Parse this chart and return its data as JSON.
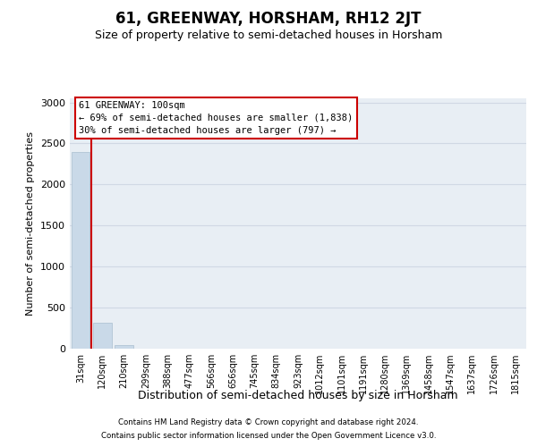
{
  "title": "61, GREENWAY, HORSHAM, RH12 2JT",
  "subtitle": "Size of property relative to semi-detached houses in Horsham",
  "xlabel": "Distribution of semi-detached houses by size in Horsham",
  "ylabel": "Number of semi-detached properties",
  "categories": [
    "31sqm",
    "120sqm",
    "210sqm",
    "299sqm",
    "388sqm",
    "477sqm",
    "566sqm",
    "656sqm",
    "745sqm",
    "834sqm",
    "923sqm",
    "1012sqm",
    "1101sqm",
    "1191sqm",
    "1280sqm",
    "1369sqm",
    "1458sqm",
    "1547sqm",
    "1637sqm",
    "1726sqm",
    "1815sqm"
  ],
  "values": [
    2400,
    320,
    48,
    0,
    0,
    0,
    0,
    0,
    0,
    0,
    0,
    0,
    0,
    0,
    0,
    0,
    0,
    0,
    0,
    0,
    0
  ],
  "bar_color": "#c9d9e8",
  "bar_edge_color": "#aabfcf",
  "grid_color": "#d0d8e4",
  "background_color": "#e8eef4",
  "property_line_color": "#cc0000",
  "annotation_text": "61 GREENWAY: 100sqm\n← 69% of semi-detached houses are smaller (1,838)\n30% of semi-detached houses are larger (797) →",
  "annotation_box_color": "#cc0000",
  "ylim": [
    0,
    3050
  ],
  "yticks": [
    0,
    500,
    1000,
    1500,
    2000,
    2500,
    3000
  ],
  "footer_line1": "Contains HM Land Registry data © Crown copyright and database right 2024.",
  "footer_line2": "Contains public sector information licensed under the Open Government Licence v3.0.",
  "title_fontsize": 12,
  "subtitle_fontsize": 9
}
